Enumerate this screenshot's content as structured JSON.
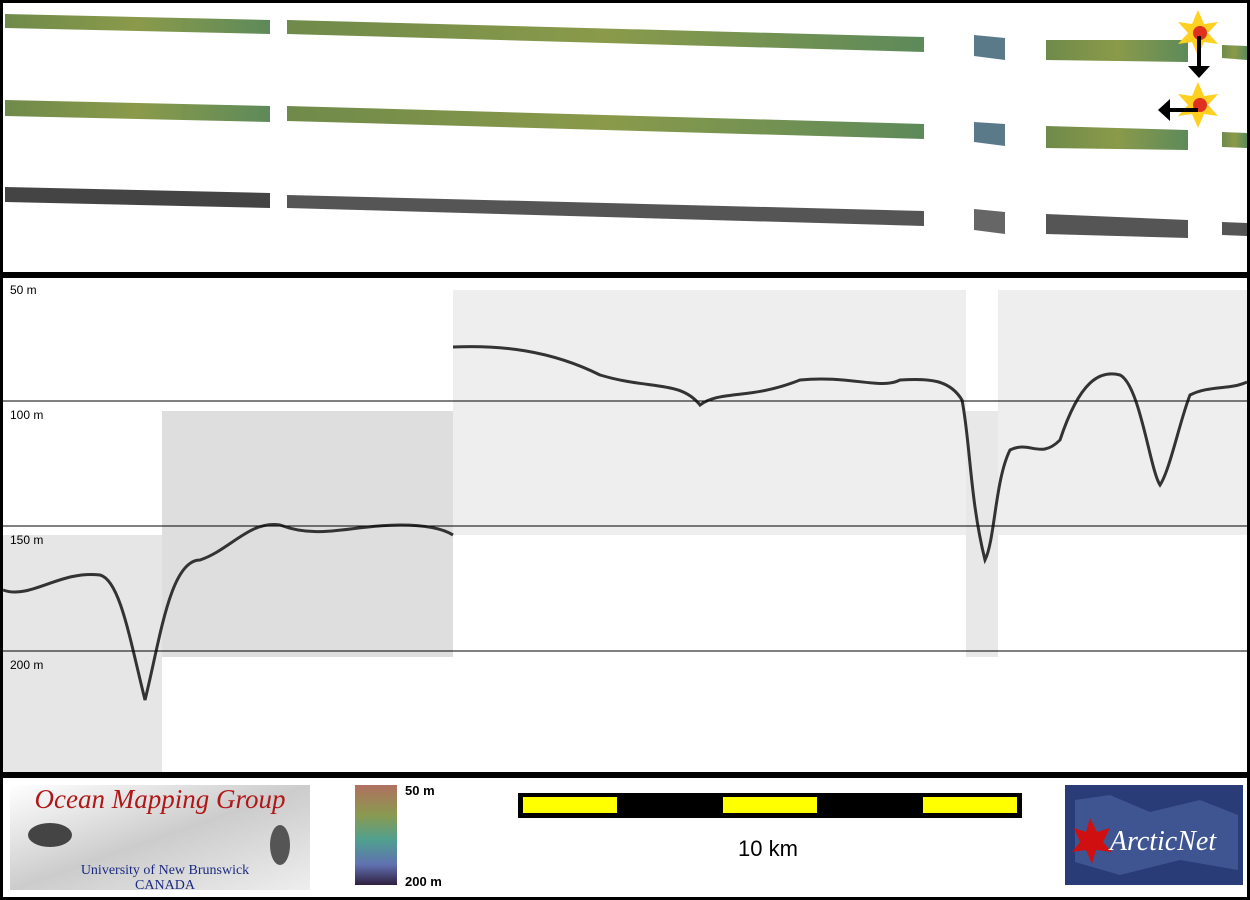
{
  "profile": {
    "depth_labels": [
      "50 m",
      "100 m",
      "150 m",
      "200 m"
    ]
  },
  "footer": {
    "logo_title": "Ocean Mapping Group",
    "logo_subtitle": "University of New Brunswick",
    "logo_country": "CANADA",
    "colorbar_top": "50 m",
    "colorbar_bottom": "200 m",
    "scale_label": "10 km",
    "partner": "ArcticNet"
  }
}
